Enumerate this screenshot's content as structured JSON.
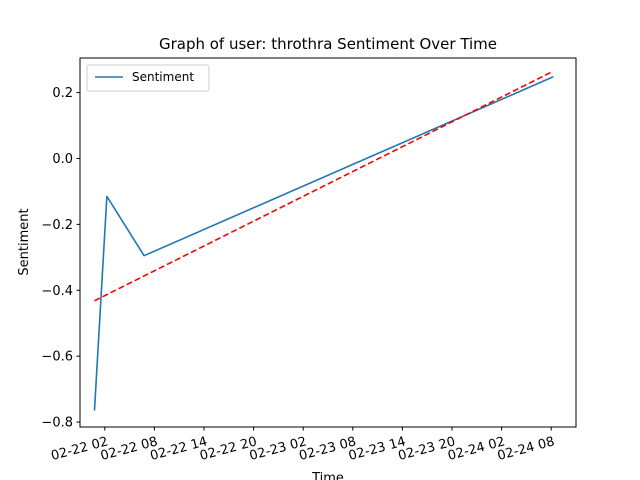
{
  "chart_data": {
    "type": "line",
    "title": "Graph of user: throthra Sentiment Over Time",
    "xlabel": "Time",
    "ylabel": "Sentiment",
    "x_ticks": [
      "02-22 02",
      "02-22 08",
      "02-22 14",
      "02-22 20",
      "02-23 02",
      "02-23 08",
      "02-23 14",
      "02-23 20",
      "02-24 02",
      "02-24 08"
    ],
    "xlim": [
      "02-21 23",
      "02-24 11"
    ],
    "ylim": [
      -0.815,
      0.305
    ],
    "y_ticks": [
      -0.8,
      -0.6,
      -0.4,
      -0.2,
      0.0,
      0.2
    ],
    "y_tick_labels": [
      "−0.8",
      "−0.6",
      "−0.4",
      "−0.2",
      "0.0",
      "0.2"
    ],
    "legend_position": "top-left",
    "series": [
      {
        "name": "Sentiment",
        "color": "#1f77b4",
        "style": "solid",
        "x": [
          "02-22 00:45",
          "02-22 02:15",
          "02-22 06:45",
          "02-24 08:15"
        ],
        "y": [
          -0.765,
          -0.115,
          -0.295,
          0.248
        ]
      },
      {
        "color": "#ff0000",
        "style": "dashed",
        "x": [
          "02-22 00:45",
          "02-24 08:15"
        ],
        "y": [
          -0.432,
          0.265
        ]
      }
    ]
  }
}
